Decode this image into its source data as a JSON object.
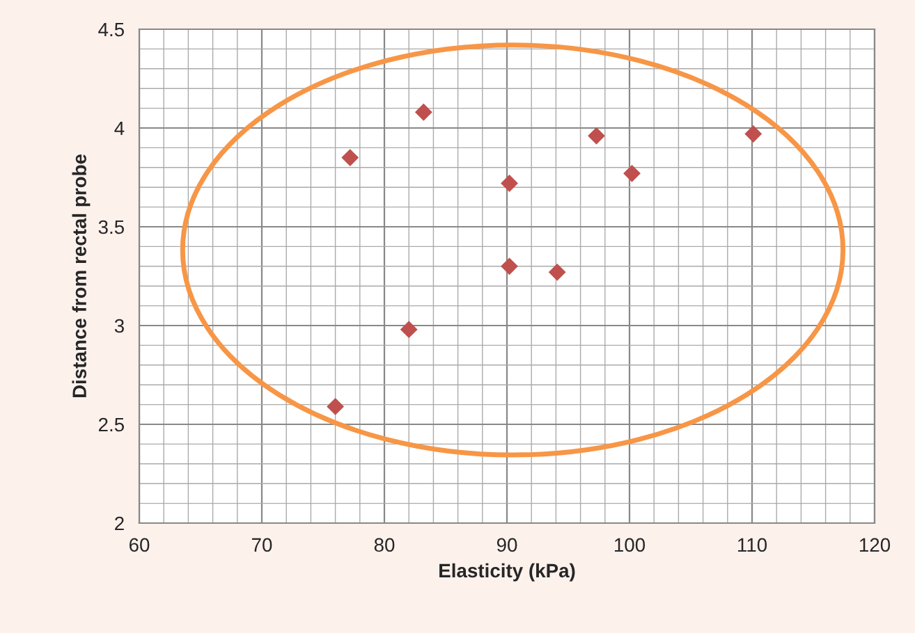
{
  "chart_data": {
    "type": "scatter",
    "xlabel": "Elasticity (kPa)",
    "ylabel": "Distance from rectal probe",
    "x": [
      76.0,
      82.0,
      77.2,
      83.2,
      90.2,
      90.2,
      94.1,
      97.3,
      100.2,
      110.1
    ],
    "series": [
      {
        "color": "#c0504d",
        "values": [
          2.59,
          2.98,
          3.85,
          4.08,
          3.72,
          3.3,
          3.27,
          3.96,
          3.77,
          3.97
        ]
      }
    ],
    "xlim": [
      60,
      120
    ],
    "ylim": [
      2,
      4.5
    ],
    "xticks": [
      60,
      70,
      80,
      90,
      100,
      110,
      120
    ],
    "yticks": [
      2,
      2.5,
      3,
      3.5,
      4,
      4.5
    ],
    "grid": true,
    "marker": "diamond"
  }
}
